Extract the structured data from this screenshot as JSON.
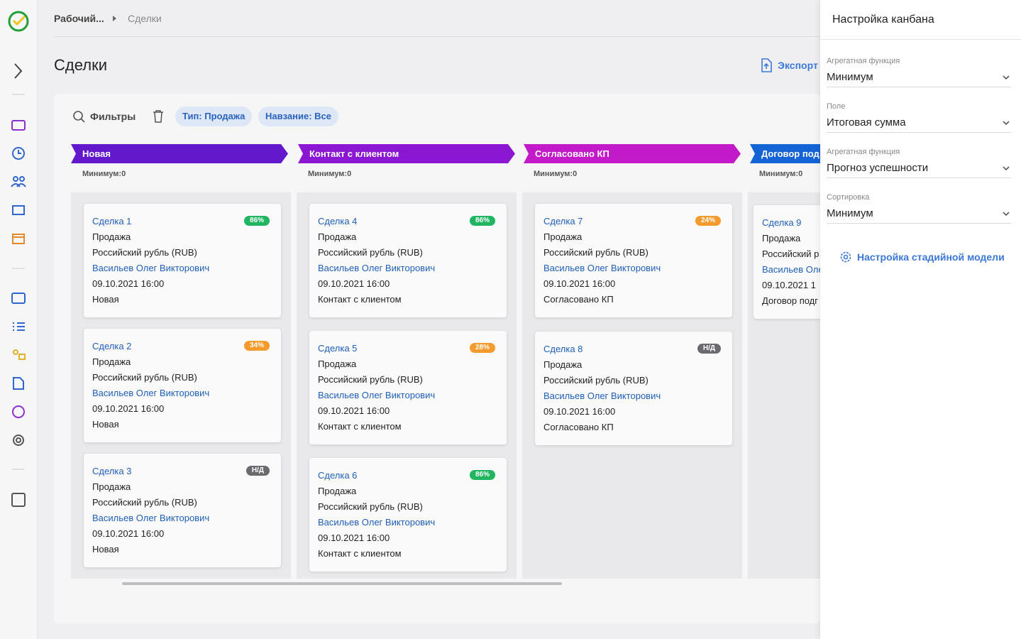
{
  "breadcrumb": [
    "Рабочий...",
    "Сделки"
  ],
  "page_title": "Сделки",
  "export": "Экспорт",
  "filters": {
    "label": "Фильтры",
    "chips": [
      "Тип: Продажа",
      "Навзание: Все"
    ]
  },
  "columns": [
    {
      "title": "Новая",
      "color": "#6318cc",
      "aggregate": "Минимум:0",
      "cards": [
        {
          "name": "Сделка 1",
          "badge": "86%",
          "badge_color": "#21b561",
          "type": "Продажа",
          "currency": "Российский рубль (RUB)",
          "owner": "Васильев Олег Викторович",
          "date": "09.10.2021 16:00",
          "stage": "Новая"
        },
        {
          "name": "Сделка 2",
          "badge": "34%",
          "badge_color": "#f59a2c",
          "type": "Продажа",
          "currency": "Российский рубль (RUB)",
          "owner": "Васильев Олег Викторович",
          "date": "09.10.2021 16:00",
          "stage": "Новая"
        },
        {
          "name": "Сделка 3",
          "badge": "Н/Д",
          "badge_color": "#6b6b6f",
          "type": "Продажа",
          "currency": "Российский рубль (RUB)",
          "owner": "Васильев Олег Викторович",
          "date": "09.10.2021 16:00",
          "stage": "Новая"
        }
      ]
    },
    {
      "title": "Контакт с клиентом",
      "color": "#8c17d2",
      "aggregate": "Минимум:0",
      "cards": [
        {
          "name": "Сделка 4",
          "badge": "86%",
          "badge_color": "#21b561",
          "type": "Продажа",
          "currency": "Российский рубль (RUB)",
          "owner": "Васильев Олег Викторович",
          "date": "09.10.2021 16:00",
          "stage": "Контакт с клиентом"
        },
        {
          "name": "Сделка 5",
          "badge": "28%",
          "badge_color": "#f59a2c",
          "type": "Продажа",
          "currency": "Российский рубль (RUB)",
          "owner": "Васильев Олег Викторович",
          "date": "09.10.2021 16:00",
          "stage": "Контакт с клиентом"
        },
        {
          "name": "Сделка 6",
          "badge": "86%",
          "badge_color": "#21b561",
          "type": "Продажа",
          "currency": "Российский рубль (RUB)",
          "owner": "Васильев Олег Викторович",
          "date": "09.10.2021 16:00",
          "stage": "Контакт с клиентом"
        }
      ]
    },
    {
      "title": "Согласовано КП",
      "color": "#c219c9",
      "aggregate": "Минимум:0",
      "cards": [
        {
          "name": "Сделка 7",
          "badge": "24%",
          "badge_color": "#f59a2c",
          "type": "Продажа",
          "currency": "Российский рубль (RUB)",
          "owner": "Васильев Олег Викторович",
          "date": "09.10.2021 16:00",
          "stage": "Согласовано КП"
        },
        {
          "name": "Сделка 8",
          "badge": "Н/Д",
          "badge_color": "#6b6b6f",
          "type": "Продажа",
          "currency": "Российский рубль (RUB)",
          "owner": "Васильев Олег Викторович",
          "date": "09.10.2021 16:00",
          "stage": "Согласовано КП"
        }
      ]
    },
    {
      "title": "Договор под",
      "color": "#1464d6",
      "aggregate": "Минимум:0",
      "cards": [
        {
          "name": "Сделка 9",
          "type": "Продажа",
          "currency": "Российский р",
          "owner": "Васильев Оле",
          "date": "09.10.2021 1",
          "stage": "Договор подг"
        }
      ]
    }
  ],
  "panel": {
    "title": "Настройка канбана",
    "fields": [
      {
        "label": "Агрегатная функция",
        "value": "Минимум"
      },
      {
        "label": "Поле",
        "value": "Итоговая сумма"
      },
      {
        "label": "Агрегатная функция",
        "value": "Прогноз успешности"
      },
      {
        "label": "Сортировка",
        "value": "Минимум"
      }
    ],
    "link": "Настройка стадийной модели"
  }
}
